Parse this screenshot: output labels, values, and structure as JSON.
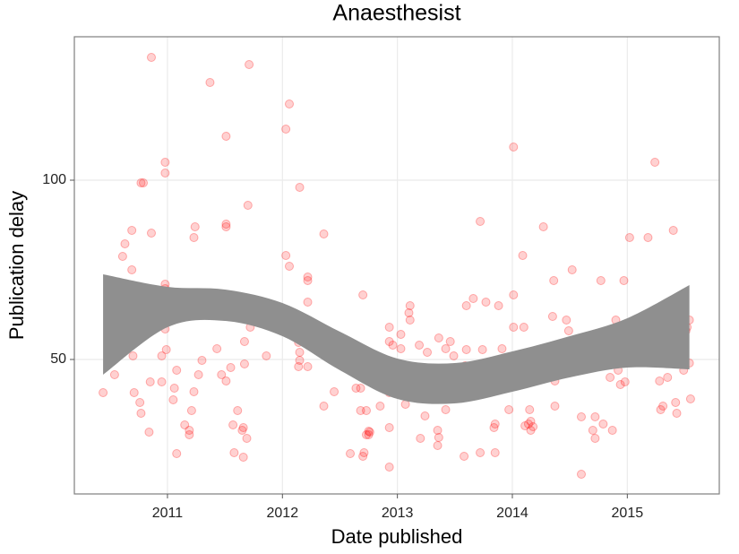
{
  "chart_data": {
    "type": "scatter",
    "title": "Anaesthesist",
    "x_label": "Date published",
    "y_label": "Publication delay",
    "xlim": [
      2010.19,
      2015.8
    ],
    "ylim": [
      12.5,
      140
    ],
    "xticks": [
      2011,
      2012,
      2013,
      2014,
      2015
    ],
    "yticks": [
      50,
      100
    ],
    "grid": true,
    "series": [
      {
        "color": "#ff0000",
        "x": [
          2010.44,
          2010.54,
          2010.58,
          2010.61,
          2010.63,
          2010.69,
          2010.69,
          2010.7,
          2010.71,
          2010.72,
          2010.76,
          2010.77,
          2010.77,
          2010.79,
          2010.84,
          2010.86,
          2010.86,
          2010.85,
          2010.93,
          2010.95,
          2010.95,
          2010.98,
          2010.98,
          2010.98,
          2010.98,
          2010.98,
          2010.99,
          2011.05,
          2011.06,
          2011.08,
          2011.08,
          2011.15,
          2011.19,
          2011.19,
          2011.21,
          2011.23,
          2011.23,
          2011.24,
          2011.27,
          2011.3,
          2011.37,
          2011.43,
          2011.47,
          2011.51,
          2011.51,
          2011.51,
          2011.51,
          2011.53,
          2011.55,
          2011.57,
          2011.58,
          2011.61,
          2011.65,
          2011.66,
          2011.66,
          2011.67,
          2011.67,
          2011.69,
          2011.71,
          2011.7,
          2011.72,
          2011.86,
          2011.86,
          2012.03,
          2012.03,
          2012.06,
          2012.06,
          2012.14,
          2012.14,
          2012.15,
          2012.15,
          2012.15,
          2012.22,
          2012.22,
          2012.22,
          2012.22,
          2012.3,
          2012.36,
          2012.36,
          2012.36,
          2012.45,
          2012.45,
          2012.59,
          2012.64,
          2012.68,
          2012.68,
          2012.7,
          2012.7,
          2012.71,
          2012.73,
          2012.73,
          2012.75,
          2012.75,
          2012.76,
          2012.8,
          2012.85,
          2012.93,
          2012.93,
          2012.93,
          2012.93,
          2012.93,
          2012.96,
          2013.03,
          2013.03,
          2013.07,
          2013.1,
          2013.11,
          2013.11,
          2013.19,
          2013.2,
          2013.2,
          2013.24,
          2013.26,
          2013.27,
          2013.33,
          2013.35,
          2013.35,
          2013.36,
          2013.36,
          2013.41,
          2013.42,
          2013.42,
          2013.46,
          2013.49,
          2013.49,
          2013.58,
          2013.59,
          2013.6,
          2013.6,
          2013.6,
          2013.66,
          2013.72,
          2013.72,
          2013.74,
          2013.77,
          2013.84,
          2013.85,
          2013.85,
          2013.88,
          2013.91,
          2013.97,
          2014.01,
          2014.01,
          2014.01,
          2014.02,
          2014.09,
          2014.1,
          2014.11,
          2014.14,
          2014.14,
          2014.15,
          2014.16,
          2014.16,
          2014.16,
          2014.18,
          2014.25,
          2014.27,
          2014.27,
          2014.35,
          2014.36,
          2014.37,
          2014.37,
          2014.47,
          2014.49,
          2014.52,
          2014.55,
          2014.6,
          2014.6,
          2014.7,
          2014.72,
          2014.72,
          2014.77,
          2014.79,
          2014.85,
          2014.87,
          2014.9,
          2014.92,
          2014.94,
          2014.97,
          2014.98,
          2015.02,
          2015.18,
          2015.22,
          2015.22,
          2015.24,
          2015.28,
          2015.29,
          2015.31,
          2015.35,
          2015.38,
          2015.4,
          2015.41,
          2015.42,
          2015.43,
          2015.49,
          2015.5,
          2015.51,
          2015.52,
          2015.54,
          2015.54,
          2015.55
        ],
        "values": [
          40.75,
          45.75,
          63,
          78.75,
          82.25,
          86,
          75,
          51,
          40.75,
          57,
          38,
          35,
          99.25,
          99.25,
          29.75,
          134.25,
          85.25,
          43.75,
          67,
          51,
          43.75,
          58.5,
          71,
          69.75,
          105,
          102,
          52.75,
          38.75,
          42,
          23.75,
          47,
          31.75,
          30.25,
          29,
          35.75,
          41,
          84,
          87,
          45.75,
          49.75,
          127.25,
          53,
          45.75,
          87.75,
          87,
          112.25,
          44,
          65,
          47.75,
          31.75,
          24,
          35.75,
          30.25,
          31,
          22.75,
          55,
          48.75,
          28,
          132.25,
          93,
          59,
          60,
          51,
          114.25,
          79,
          121.25,
          76,
          54.75,
          48,
          98,
          52,
          49.75,
          73,
          72,
          66,
          48,
          55,
          85,
          37,
          58,
          41,
          57,
          23.75,
          42,
          35.75,
          42,
          68,
          23,
          24,
          29,
          35.75,
          29,
          30,
          29.75,
          47,
          37,
          20,
          55,
          59,
          40.75,
          31,
          54,
          57,
          53,
          37.5,
          63,
          65,
          61,
          54,
          28,
          46.5,
          34.25,
          52,
          40.75,
          39.75,
          26,
          30.25,
          28.25,
          56,
          43,
          53,
          36,
          55,
          51,
          45,
          23,
          48.25,
          65,
          44,
          52.75,
          67,
          24,
          88.5,
          52.75,
          66,
          31,
          32,
          24,
          65,
          53,
          36,
          109.25,
          68,
          59,
          49,
          79,
          59,
          31.5,
          51,
          32,
          36,
          48,
          32.75,
          30.25,
          31.25,
          47,
          49,
          87,
          62,
          72,
          37,
          44,
          61,
          58,
          75,
          50,
          34,
          18,
          30.25,
          34,
          28,
          72,
          32,
          45,
          30.25,
          61,
          47,
          43,
          72,
          43.75,
          84,
          84,
          51,
          60,
          105,
          44,
          36,
          37,
          45,
          57,
          86,
          49,
          38,
          35,
          47,
          49,
          58,
          59,
          49,
          61,
          39
        ]
      }
    ],
    "band": {
      "color": "#8f8f8f",
      "x": [
        2010.44,
        2011,
        2011.5,
        2012,
        2012.5,
        2013,
        2013.5,
        2014,
        2014.5,
        2015,
        2015.54
      ],
      "upper": [
        73.75,
        70.25,
        69.5,
        65.75,
        57.75,
        50.25,
        49,
        52.25,
        56.5,
        61.5,
        70.75
      ],
      "lower": [
        45.75,
        59,
        60.75,
        56.5,
        47,
        39,
        37.75,
        41,
        45,
        47.75,
        47.25
      ]
    }
  }
}
